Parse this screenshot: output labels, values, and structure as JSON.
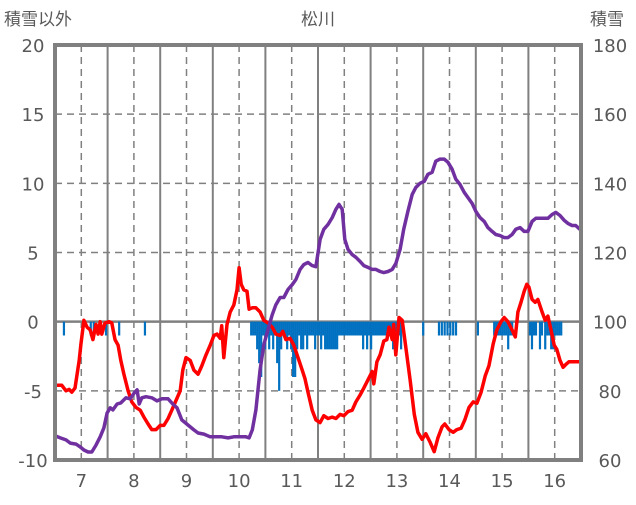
{
  "chart_data": {
    "type": "line",
    "title": "松川",
    "ylabel_left": "積雪以外",
    "ylabel_right": "積雪",
    "xlim": [
      6.5,
      16.5
    ],
    "ylim_left": [
      -10,
      20
    ],
    "ylim_right": [
      60,
      180
    ],
    "x_ticks": [
      "7",
      "8",
      "9",
      "10",
      "11",
      "12",
      "13",
      "14",
      "15",
      "16"
    ],
    "y_left_ticks": [
      "20",
      "15",
      "10",
      "5",
      "0",
      "-5",
      "-10"
    ],
    "y_right_ticks": [
      "180",
      "160",
      "140",
      "120",
      "100",
      "80",
      "60"
    ],
    "grid": true,
    "colors": {
      "red": "#FF0000",
      "purple": "#7030A0",
      "bars": "#0070C0",
      "axis": "#808080"
    },
    "series": [
      {
        "name": "red",
        "axis": "left",
        "color": "#FF0000",
        "x": [
          6.5,
          6.63,
          6.71,
          6.77,
          6.82,
          6.88,
          6.96,
          6.99,
          7.05,
          7.11,
          7.17,
          7.22,
          7.28,
          7.32,
          7.36,
          7.39,
          7.45,
          7.53,
          7.58,
          7.64,
          7.7,
          7.75,
          7.81,
          7.89,
          7.96,
          8.04,
          8.12,
          8.19,
          8.27,
          8.34,
          8.42,
          8.5,
          8.57,
          8.65,
          8.72,
          8.8,
          8.88,
          8.93,
          8.99,
          9.07,
          9.14,
          9.22,
          9.29,
          9.37,
          9.45,
          9.52,
          9.58,
          9.64,
          9.67,
          9.71,
          9.77,
          9.83,
          9.9,
          9.96,
          10.0,
          10.04,
          10.09,
          10.15,
          10.19,
          10.25,
          10.32,
          10.4,
          10.47,
          10.55,
          10.63,
          10.7,
          10.78,
          10.83,
          10.89,
          10.97,
          11.04,
          11.12,
          11.2,
          11.25,
          11.31,
          11.39,
          11.46,
          11.54,
          11.61,
          11.69,
          11.77,
          11.84,
          11.92,
          11.99,
          12.07,
          12.15,
          12.22,
          12.3,
          12.37,
          12.45,
          12.53,
          12.56,
          12.62,
          12.68,
          12.75,
          12.81,
          12.85,
          12.91,
          12.94,
          12.98,
          13.04,
          13.1,
          13.15,
          13.25,
          13.33,
          13.4,
          13.48,
          13.55,
          13.63,
          13.71,
          13.78,
          13.86,
          13.91,
          13.99,
          14.07,
          14.14,
          14.22,
          14.29,
          14.37,
          14.45,
          14.52,
          14.6,
          14.68,
          14.75,
          14.83,
          14.9,
          14.98,
          15.04,
          15.11,
          15.19,
          15.25,
          15.3,
          15.36,
          15.42,
          15.47,
          15.51,
          15.57,
          15.63,
          15.68,
          15.76,
          15.82,
          15.87,
          15.93,
          15.99,
          16.04,
          16.1,
          16.16,
          16.21,
          16.27,
          16.37,
          16.48
        ],
        "y": [
          -4.6,
          -4.6,
          -5.0,
          -4.9,
          -5.1,
          -4.8,
          -2.8,
          -1.7,
          0.1,
          -0.4,
          -0.6,
          -1.3,
          -0.2,
          -0.9,
          0.0,
          -0.9,
          -0.1,
          0.0,
          -0.1,
          -1.3,
          -1.7,
          -2.8,
          -3.8,
          -5.0,
          -5.8,
          -6.2,
          -6.4,
          -6.9,
          -7.4,
          -7.8,
          -7.8,
          -7.5,
          -7.5,
          -7.0,
          -6.4,
          -5.7,
          -5.0,
          -3.5,
          -2.6,
          -2.8,
          -3.5,
          -3.8,
          -3.2,
          -2.4,
          -1.7,
          -1.0,
          -0.9,
          -1.2,
          -0.3,
          -2.6,
          -0.2,
          0.7,
          1.2,
          2.3,
          3.9,
          2.7,
          2.3,
          2.2,
          0.9,
          1.0,
          1.0,
          0.7,
          0.1,
          -0.1,
          -0.4,
          -0.9,
          -1.0,
          -0.7,
          -1.3,
          -1.2,
          -1.7,
          -2.6,
          -3.5,
          -4.1,
          -5.1,
          -6.4,
          -7.1,
          -7.3,
          -6.8,
          -7.0,
          -6.9,
          -7.0,
          -6.7,
          -6.8,
          -6.5,
          -6.4,
          -5.8,
          -5.3,
          -4.8,
          -4.2,
          -3.6,
          -4.5,
          -2.9,
          -2.4,
          -1.4,
          -1.3,
          -0.4,
          -1.3,
          -0.2,
          -2.4,
          0.3,
          0.1,
          -1.3,
          -4.2,
          -6.7,
          -8.0,
          -8.5,
          -8.1,
          -8.7,
          -9.4,
          -8.4,
          -7.6,
          -7.4,
          -7.8,
          -8.0,
          -7.8,
          -7.7,
          -7.1,
          -6.2,
          -5.8,
          -5.9,
          -5.1,
          -3.9,
          -3.2,
          -1.6,
          -0.6,
          0.0,
          0.3,
          0.0,
          -0.6,
          -1.1,
          0.7,
          1.4,
          2.2,
          2.7,
          2.5,
          1.6,
          1.4,
          1.6,
          0.7,
          0.1,
          0.4,
          -0.6,
          -1.7,
          -2.0,
          -2.8,
          -3.3,
          -3.1,
          -2.9,
          -2.9,
          -2.9
        ]
      },
      {
        "name": "purple",
        "axis": "right",
        "color": "#7030A0",
        "x": [
          6.5,
          6.6,
          6.71,
          6.79,
          6.9,
          6.98,
          7.05,
          7.13,
          7.2,
          7.28,
          7.36,
          7.43,
          7.49,
          7.55,
          7.6,
          7.68,
          7.75,
          7.85,
          7.93,
          8.02,
          8.06,
          8.1,
          8.15,
          8.23,
          8.34,
          8.44,
          8.53,
          8.65,
          8.74,
          8.82,
          8.91,
          9.03,
          9.14,
          9.22,
          9.33,
          9.45,
          9.56,
          9.67,
          9.79,
          9.9,
          10.02,
          10.13,
          10.19,
          10.25,
          10.32,
          10.4,
          10.47,
          10.55,
          10.63,
          10.7,
          10.78,
          10.85,
          10.93,
          11.01,
          11.08,
          11.16,
          11.23,
          11.31,
          11.39,
          11.46,
          11.54,
          11.61,
          11.69,
          11.77,
          11.84,
          11.9,
          11.96,
          12.01,
          12.07,
          12.15,
          12.22,
          12.3,
          12.37,
          12.45,
          12.53,
          12.6,
          12.68,
          12.75,
          12.83,
          12.91,
          12.98,
          13.06,
          13.13,
          13.21,
          13.29,
          13.36,
          13.44,
          13.52,
          13.59,
          13.67,
          13.74,
          13.82,
          13.9,
          13.97,
          14.05,
          14.12,
          14.2,
          14.28,
          14.35,
          14.43,
          14.5,
          14.58,
          14.66,
          14.73,
          14.81,
          14.88,
          14.96,
          15.04,
          15.11,
          15.19,
          15.26,
          15.34,
          15.42,
          15.49,
          15.57,
          15.64,
          15.72,
          15.8,
          15.87,
          15.95,
          16.02,
          16.1,
          16.18,
          16.25,
          16.33,
          16.4,
          16.48
        ],
        "y": [
          67.0,
          66.4,
          65.8,
          64.9,
          64.6,
          63.8,
          62.9,
          62.3,
          62.3,
          64.3,
          66.7,
          69.3,
          73.6,
          75.1,
          74.5,
          76.2,
          76.5,
          78.0,
          77.7,
          79.7,
          80.3,
          76.2,
          78.0,
          78.3,
          78.0,
          77.1,
          77.7,
          77.7,
          76.2,
          75.1,
          71.6,
          70.1,
          68.7,
          67.8,
          67.5,
          66.7,
          66.7,
          66.7,
          66.4,
          66.7,
          66.7,
          66.7,
          66.4,
          68.7,
          74.5,
          86.1,
          93.3,
          97.7,
          102.0,
          104.9,
          107.0,
          107.0,
          109.3,
          110.7,
          112.2,
          115.1,
          116.5,
          117.1,
          116.2,
          115.9,
          123.8,
          126.7,
          128.1,
          130.1,
          132.5,
          133.9,
          132.5,
          123.8,
          120.9,
          119.4,
          118.6,
          117.4,
          116.2,
          115.7,
          115.1,
          115.1,
          114.5,
          114.2,
          114.5,
          115.1,
          116.8,
          120.9,
          126.7,
          131.9,
          136.8,
          138.8,
          140.0,
          140.6,
          142.6,
          143.2,
          146.4,
          147.0,
          147.0,
          146.1,
          144.1,
          141.2,
          139.7,
          137.4,
          135.9,
          134.2,
          131.9,
          130.1,
          129.0,
          127.2,
          126.1,
          125.2,
          124.9,
          124.3,
          124.3,
          125.2,
          126.7,
          127.2,
          126.1,
          126.1,
          129.0,
          129.9,
          129.9,
          129.9,
          129.9,
          131.0,
          131.6,
          130.7,
          129.3,
          128.4,
          127.8,
          127.8,
          126.7
        ]
      }
    ],
    "bars": {
      "axis": "left",
      "color": "#0070C0",
      "runs": [
        {
          "start": 6.67,
          "step": 0.038,
          "values": [
            -1
          ]
        },
        {
          "start": 7.18,
          "step": 0.057,
          "values": [
            -1,
            -1
          ]
        },
        {
          "start": 7.47,
          "step": 0.038,
          "values": [
            -1
          ]
        },
        {
          "start": 7.72,
          "step": 0.038,
          "values": [
            -1
          ]
        },
        {
          "start": 8.21,
          "step": 0.038,
          "values": [
            -1
          ]
        },
        {
          "start": 10.23,
          "step": 0.038,
          "values": [
            -1,
            -1,
            -1,
            -2,
            -3,
            -4,
            -1,
            -2,
            -1,
            -2,
            -1,
            -2,
            -1,
            -3,
            -5,
            -2,
            -1,
            -1,
            -2,
            -1,
            -2,
            -4,
            -4,
            -2,
            -1,
            -2,
            -2,
            -1,
            -2,
            -1,
            -1,
            -1,
            -2,
            -1,
            -1,
            -2,
            -1,
            -2,
            -2,
            -2,
            -2,
            -2,
            -2,
            -2,
            -1,
            -1,
            -1,
            -1,
            -1,
            -1,
            -1,
            -1,
            -1,
            -1,
            -1,
            -1,
            -2,
            -1,
            -2,
            -1,
            -2,
            -1,
            -1,
            -1,
            -1,
            -1,
            -1,
            -1,
            -1,
            -1,
            -1,
            -2,
            -1,
            -1,
            -1,
            -2
          ]
        },
        {
          "start": 13.5,
          "step": 0.038,
          "values": [
            -1
          ]
        },
        {
          "start": 13.8,
          "step": 0.054,
          "values": [
            -1,
            -1,
            -1,
            -1,
            -1,
            -1,
            -1
          ]
        },
        {
          "start": 14.54,
          "step": 0.038,
          "values": [
            -1
          ]
        },
        {
          "start": 14.85,
          "step": 0.038,
          "values": [
            -1,
            -1,
            -1,
            -1,
            -1,
            -1,
            -1,
            -2,
            -1,
            -1
          ]
        },
        {
          "start": 15.53,
          "step": 0.038,
          "values": [
            -1,
            -2,
            -1,
            -1,
            0,
            -2,
            -1
          ]
        },
        {
          "start": 15.82,
          "step": 0.038,
          "values": [
            -2,
            -1,
            -1,
            -2,
            -2,
            -1,
            -1,
            -1,
            -1
          ]
        }
      ]
    }
  }
}
